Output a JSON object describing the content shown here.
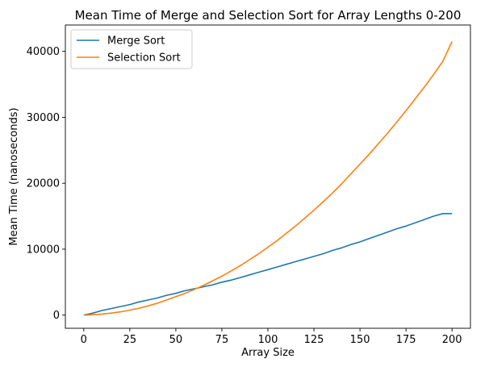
{
  "chart_data": {
    "type": "line",
    "title": "Mean Time of Merge and Selection Sort for Array Lengths 0-200",
    "xlabel": "Array Size",
    "ylabel": "Mean Time (nanoseconds)",
    "xlim": [
      -10,
      210
    ],
    "ylim": [
      -2000,
      44000
    ],
    "xticks": [
      0,
      25,
      50,
      75,
      100,
      125,
      150,
      175,
      200
    ],
    "yticks": [
      0,
      10000,
      20000,
      30000,
      40000
    ],
    "grid": false,
    "legend_position": "upper-left",
    "series": [
      {
        "name": "Merge Sort",
        "color": "#1f77b4",
        "x": [
          0,
          5,
          10,
          15,
          20,
          25,
          30,
          35,
          40,
          45,
          50,
          55,
          60,
          65,
          70,
          75,
          80,
          85,
          90,
          95,
          100,
          105,
          110,
          115,
          120,
          125,
          130,
          135,
          140,
          145,
          150,
          155,
          160,
          165,
          170,
          175,
          180,
          185,
          190,
          195,
          200
        ],
        "y": [
          0,
          300,
          700,
          1000,
          1300,
          1600,
          2000,
          2300,
          2600,
          3000,
          3300,
          3700,
          4000,
          4300,
          4600,
          5000,
          5300,
          5700,
          6100,
          6500,
          6900,
          7300,
          7700,
          8100,
          8500,
          8900,
          9300,
          9800,
          10200,
          10700,
          11100,
          11600,
          12100,
          12600,
          13100,
          13500,
          14000,
          14500,
          15000,
          15400,
          15400
        ]
      },
      {
        "name": "Selection Sort",
        "color": "#ff7f0e",
        "x": [
          0,
          5,
          10,
          15,
          20,
          25,
          30,
          35,
          40,
          45,
          50,
          55,
          60,
          65,
          70,
          75,
          80,
          85,
          90,
          95,
          100,
          105,
          110,
          115,
          120,
          125,
          130,
          135,
          140,
          145,
          150,
          155,
          160,
          165,
          170,
          175,
          180,
          185,
          190,
          195,
          200
        ],
        "y": [
          0,
          50,
          150,
          300,
          500,
          750,
          1050,
          1400,
          1800,
          2300,
          2800,
          3300,
          3900,
          4500,
          5200,
          5900,
          6700,
          7500,
          8400,
          9300,
          10300,
          11300,
          12400,
          13500,
          14700,
          15900,
          17200,
          18500,
          19900,
          21400,
          22900,
          24400,
          26000,
          27600,
          29300,
          31000,
          32800,
          34600,
          36500,
          38500,
          41500
        ]
      }
    ]
  }
}
